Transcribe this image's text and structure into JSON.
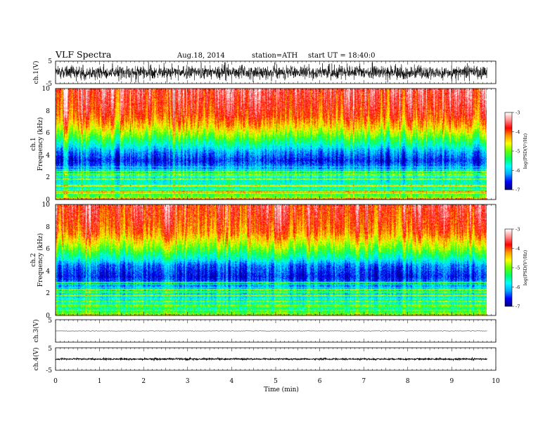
{
  "header": {
    "title": "VLF  Spectra",
    "date": "Aug.18,  2014",
    "station": "station=ATH",
    "start": "start  UT  =    18:40:0"
  },
  "colors": {
    "spectrogram_scale": [
      "#000080",
      "#0000ff",
      "#00aaff",
      "#00ffff",
      "#00ff66",
      "#66ff00",
      "#ffff00",
      "#ff9900",
      "#ff0000",
      "#ff8888",
      "#ffffff"
    ],
    "trace": "#000000"
  },
  "chart_data": [
    {
      "type": "line",
      "name": "ch1-waveform",
      "ylabel": "ch.1(V)",
      "ylim": [
        -5,
        5
      ],
      "yticks": [
        "5",
        "-5"
      ],
      "xlim": [
        0,
        10
      ],
      "xlabel": "Time  (min)",
      "xticks": [
        "0",
        "1",
        "2",
        "3",
        "4",
        "5",
        "6",
        "7",
        "8",
        "9",
        "10"
      ],
      "data_end_min": 9.8,
      "mean": 0,
      "noise_amplitude_v": 3.5
    },
    {
      "type": "heatmap",
      "name": "ch1-spectrogram",
      "ylabel": "ch.1\nFrequency  (kHz)",
      "ylim": [
        0,
        10
      ],
      "yticks": [
        "0",
        "2",
        "4",
        "6",
        "8",
        "10"
      ],
      "xlim": [
        0,
        10
      ],
      "data_end_min": 9.8,
      "colorbar": {
        "label": "log(PSD(V²/Hz)",
        "ticks": [
          "-3",
          "-4",
          "-5",
          "-6",
          "-7"
        ],
        "range": [
          -7,
          -3
        ]
      },
      "profile_khz_logpsd": [
        [
          0,
          -4.8
        ],
        [
          0.5,
          -5.3
        ],
        [
          1,
          -5.6
        ],
        [
          2,
          -5.8
        ],
        [
          2.5,
          -6.0
        ],
        [
          3.5,
          -6.6
        ],
        [
          4.3,
          -6.2
        ],
        [
          5,
          -5.6
        ],
        [
          5.8,
          -5.0
        ],
        [
          6.5,
          -4.5
        ],
        [
          7.5,
          -4.0
        ],
        [
          8.5,
          -3.8
        ],
        [
          10,
          -3.6
        ]
      ]
    },
    {
      "type": "heatmap",
      "name": "ch2-spectrogram",
      "ylabel": "ch.2\nFrequency  (kHz)",
      "ylim": [
        0,
        10
      ],
      "yticks": [
        "0",
        "2",
        "4",
        "6",
        "8",
        "10"
      ],
      "xlim": [
        0,
        10
      ],
      "data_end_min": 9.8,
      "colorbar": {
        "label": "log(PSD(V²/Hz)",
        "ticks": [
          "-3",
          "-4",
          "-5",
          "-6",
          "-7"
        ],
        "range": [
          -7,
          -3
        ]
      },
      "profile_khz_logpsd": [
        [
          0,
          -4.9
        ],
        [
          0.5,
          -5.4
        ],
        [
          1,
          -5.7
        ],
        [
          2,
          -5.9
        ],
        [
          2.8,
          -6.2
        ],
        [
          3.5,
          -6.6
        ],
        [
          4.5,
          -6.3
        ],
        [
          5.2,
          -5.6
        ],
        [
          6,
          -5.0
        ],
        [
          6.8,
          -4.5
        ],
        [
          7.5,
          -4.1
        ],
        [
          8.5,
          -3.9
        ],
        [
          10,
          -3.7
        ]
      ]
    },
    {
      "type": "line",
      "name": "ch3-waveform",
      "ylabel": "ch.3(V)",
      "ylim": [
        -5,
        5
      ],
      "yticks": [
        "5"
      ],
      "xlim": [
        0,
        10
      ],
      "data_end_min": 9.8,
      "mean": 0,
      "noise_amplitude_v": 0.15
    },
    {
      "type": "line",
      "name": "ch4-waveform",
      "ylabel": "ch.4(V)",
      "ylim": [
        -5,
        5
      ],
      "yticks": [
        "5",
        "-5"
      ],
      "xlim": [
        0,
        10
      ],
      "data_end_min": 9.8,
      "mean": 0,
      "noise_amplitude_v": 0.4
    }
  ]
}
